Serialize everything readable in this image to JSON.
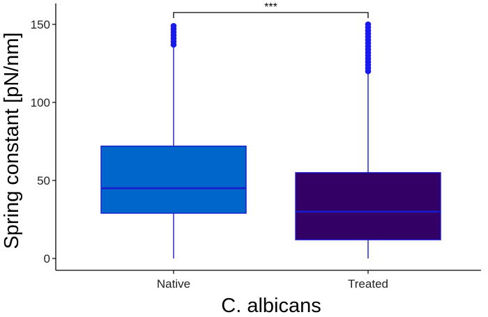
{
  "chart_data": {
    "type": "boxplot",
    "title": "",
    "xlabel": "C. albicans",
    "ylabel": "Spring constant [pN/nm]",
    "ylim": [
      0,
      160
    ],
    "yticks": [
      0,
      50,
      100,
      150
    ],
    "ytick_labels": [
      "0",
      "50",
      "100",
      "150"
    ],
    "grid": false,
    "legend": "none",
    "categories": [
      "Native",
      "Treated"
    ],
    "boxes": [
      {
        "category": "Native",
        "min": 0,
        "q1": 29,
        "median": 45,
        "q3": 72,
        "whisker_high": 137,
        "outliers": [
          137,
          139,
          141,
          143,
          145,
          147,
          149
        ],
        "fill": "#0066cc"
      },
      {
        "category": "Treated",
        "min": 0,
        "q1": 12,
        "median": 30,
        "q3": 55,
        "whisker_high": 120,
        "outliers": [
          120,
          122,
          124,
          126,
          128,
          130,
          132,
          134,
          136,
          138,
          140,
          142,
          144,
          146,
          148,
          150
        ],
        "fill": "#330066"
      }
    ],
    "significance": {
      "from": "Native",
      "to": "Treated",
      "label": "***"
    },
    "colors": {
      "stroke": "#1a1acc",
      "outlier": "#1a1aee",
      "axis": "#000000"
    }
  }
}
